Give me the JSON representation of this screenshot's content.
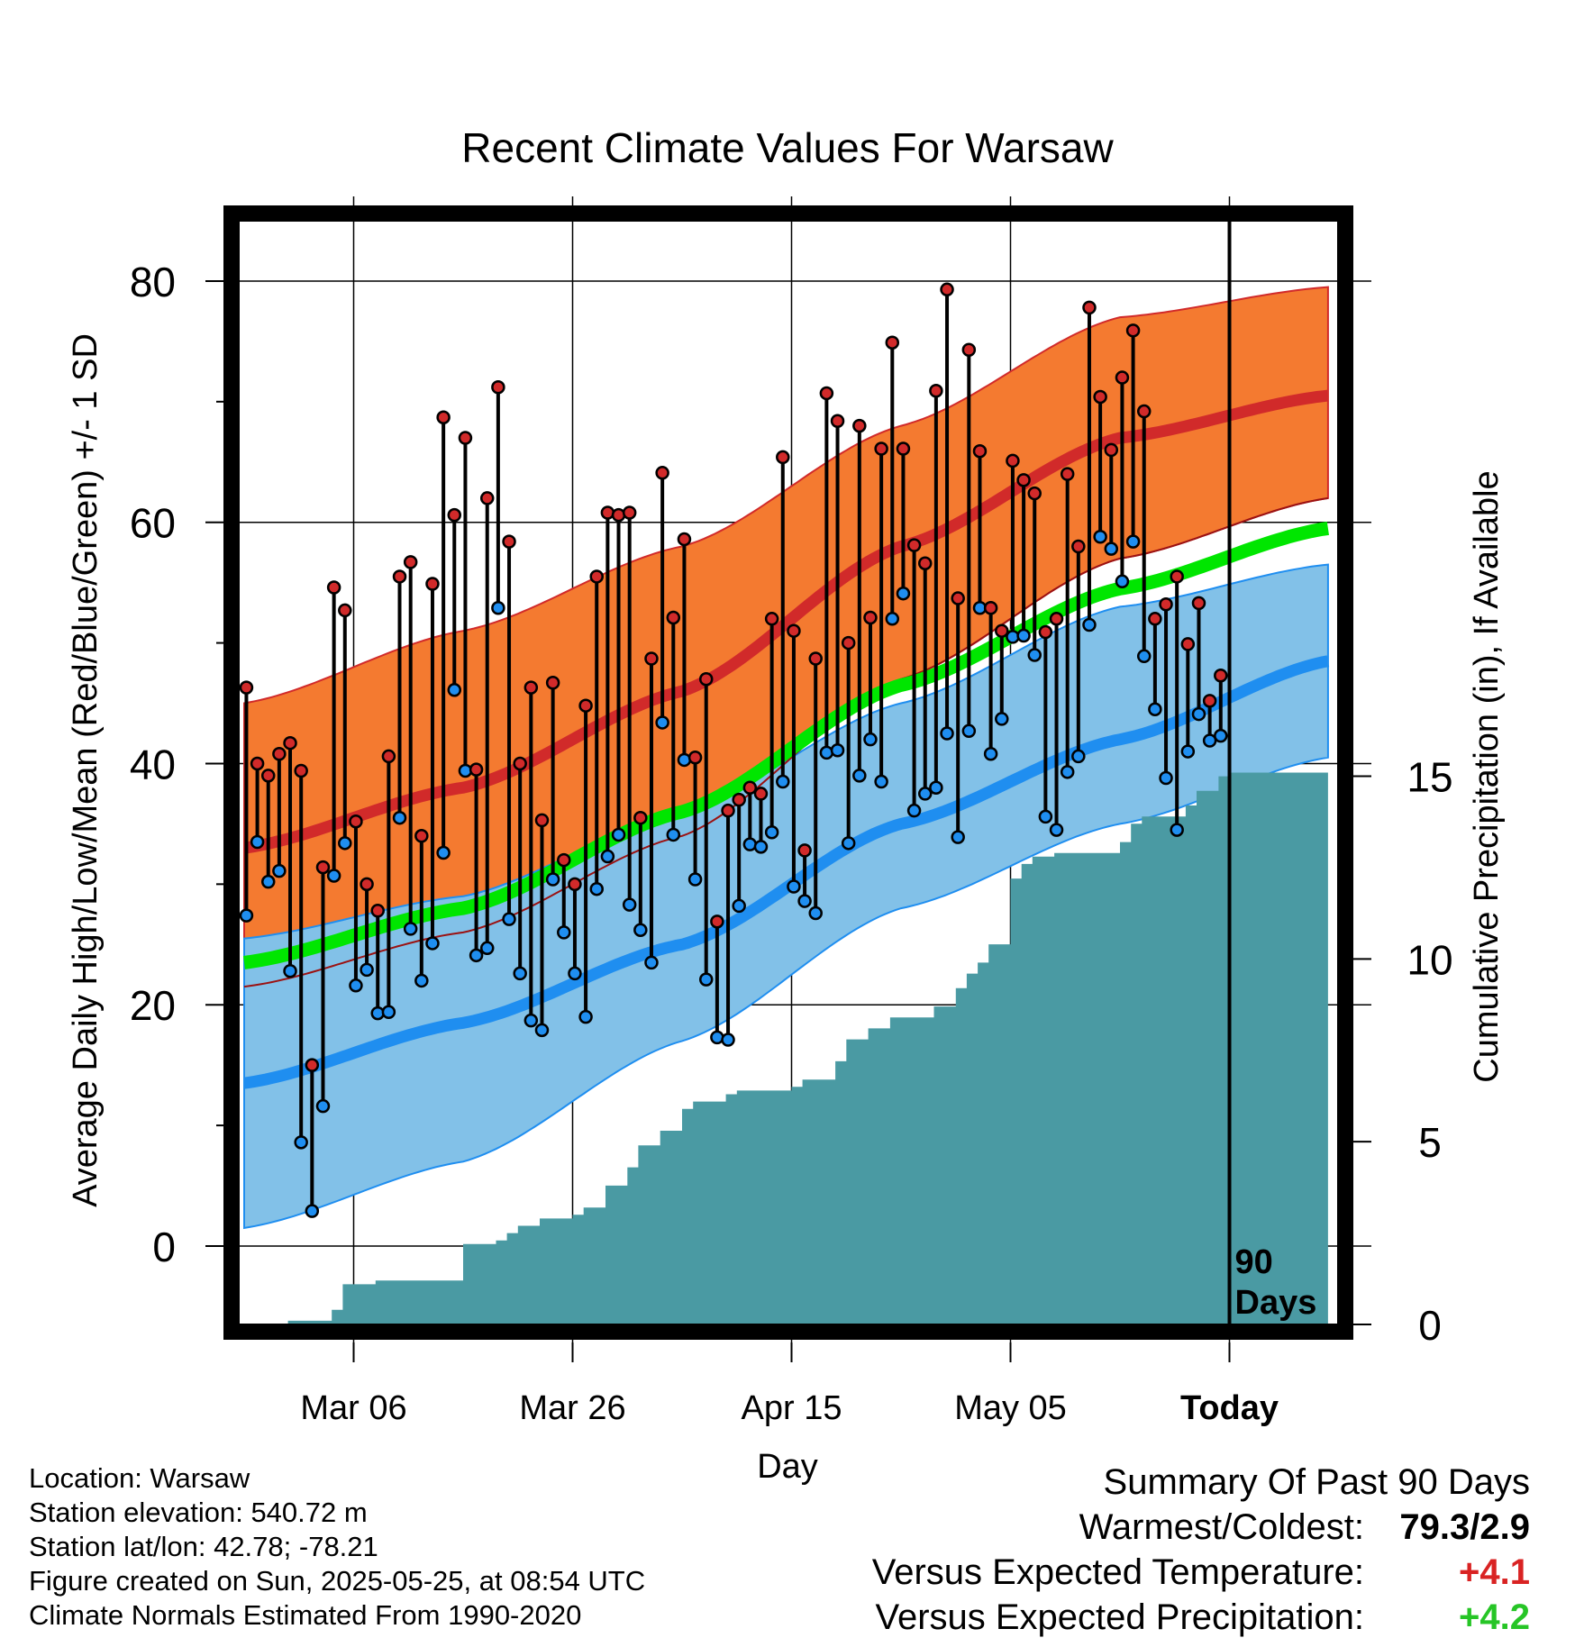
{
  "chart_data": {
    "type": "line",
    "title": "Recent Climate Values For Warsaw",
    "xlabel": "Day",
    "ylabel_left": "Average Daily High/Low/Mean (Red/Blue/Green) +/- 1 SD",
    "ylabel_right": "Cumulative Precipitation (in), If Available",
    "x_ticks": [
      "Mar 06",
      "Mar 26",
      "Apr 15",
      "May 05",
      "Today"
    ],
    "x_tick_days": [
      10,
      30,
      50,
      70,
      90
    ],
    "y_left_ticks": [
      "0",
      "20",
      "40",
      "60",
      "80"
    ],
    "y_left_range": [
      -6.5,
      85
    ],
    "y_right_ticks": [
      "0",
      "5",
      "10",
      "15"
    ],
    "y_right_range": [
      0,
      30.2
    ],
    "grid": true,
    "period_label": "90\nDays",
    "normals": {
      "high_mean": [
        [
          0,
          33
        ],
        [
          20,
          38
        ],
        [
          40,
          46
        ],
        [
          60,
          58
        ],
        [
          80,
          67
        ],
        [
          99,
          70.5
        ]
      ],
      "high_upper": [
        [
          0,
          45
        ],
        [
          20,
          51
        ],
        [
          40,
          58
        ],
        [
          60,
          68
        ],
        [
          80,
          77
        ],
        [
          99,
          79.5
        ]
      ],
      "high_lower": [
        [
          0,
          21.5
        ],
        [
          20,
          26
        ],
        [
          40,
          34
        ],
        [
          60,
          47
        ],
        [
          80,
          57
        ],
        [
          99,
          62
        ]
      ],
      "low_mean": [
        [
          0,
          13.5
        ],
        [
          20,
          18.5
        ],
        [
          40,
          25
        ],
        [
          60,
          35
        ],
        [
          80,
          42
        ],
        [
          99,
          48.5
        ]
      ],
      "low_upper": [
        [
          0,
          25.5
        ],
        [
          20,
          29
        ],
        [
          40,
          36
        ],
        [
          60,
          45
        ],
        [
          80,
          53
        ],
        [
          99,
          56.5
        ]
      ],
      "low_lower": [
        [
          0,
          1.5
        ],
        [
          20,
          7
        ],
        [
          40,
          17
        ],
        [
          60,
          28
        ],
        [
          80,
          35
        ],
        [
          99,
          40.5
        ]
      ],
      "mean": [
        [
          0,
          23.5
        ],
        [
          20,
          28
        ],
        [
          40,
          36
        ],
        [
          60,
          46.5
        ],
        [
          80,
          54.5
        ],
        [
          99,
          59.5
        ]
      ]
    },
    "series": [
      {
        "name": "Daily High",
        "values": [
          46.3,
          40,
          39,
          40.8,
          41.7,
          39.4,
          15,
          31.4,
          54.6,
          52.7,
          35.2,
          30,
          27.8,
          40.6,
          55.5,
          56.7,
          34,
          54.9,
          68.7,
          60.6,
          67,
          39.5,
          62,
          71.2,
          58.4,
          40,
          46.3,
          35.3,
          46.7,
          32,
          30,
          44.8,
          55.5,
          60.8,
          60.6,
          60.8,
          35.5,
          48.7,
          64.1,
          52.1,
          58.6,
          40.5,
          47,
          26.9,
          36.1,
          37,
          38,
          37.5,
          52,
          65.4,
          51,
          32.8,
          48.7,
          70.7,
          68.4,
          50,
          68,
          52.1,
          66.1,
          74.9,
          66.1,
          58.1,
          56.6,
          70.9,
          79.3,
          53.7,
          74.3,
          65.9,
          52.9,
          51,
          65.1,
          63.5,
          62.4,
          50.9,
          52,
          64,
          58,
          77.8,
          70.4,
          66,
          72,
          75.9,
          69.2,
          52,
          53.2,
          55.5,
          49.9,
          53.3,
          45.2,
          47.3
        ]
      },
      {
        "name": "Daily Low",
        "values": [
          27.4,
          33.5,
          30.2,
          31.1,
          22.8,
          8.6,
          2.9,
          11.6,
          30.7,
          33.4,
          21.6,
          22.9,
          19.3,
          19.4,
          35.5,
          26.3,
          22,
          25.1,
          32.6,
          46.1,
          39.4,
          24.1,
          24.7,
          52.9,
          27.1,
          22.6,
          18.7,
          17.9,
          30.4,
          26,
          22.6,
          19,
          29.6,
          32.3,
          34.1,
          28.3,
          26.2,
          23.5,
          43.4,
          34.1,
          40.3,
          30.4,
          22.1,
          17.3,
          17.1,
          28.2,
          33.3,
          33.1,
          34.3,
          38.5,
          29.8,
          28.6,
          27.6,
          40.9,
          41.1,
          33.4,
          39,
          42,
          38.5,
          52,
          54.1,
          36.1,
          37.5,
          38,
          42.5,
          33.9,
          42.7,
          52.9,
          40.8,
          43.7,
          50.5,
          50.6,
          49,
          35.6,
          34.5,
          39.3,
          40.6,
          51.5,
          58.8,
          57.8,
          55.1,
          58.4,
          48.9,
          44.5,
          38.8,
          34.5,
          41,
          44.1,
          41.9,
          42.3
        ]
      }
    ],
    "precip_cumulative": [
      [
        0,
        0
      ],
      [
        4,
        0.1
      ],
      [
        8,
        0.4
      ],
      [
        9,
        1.1
      ],
      [
        11,
        1.1
      ],
      [
        12,
        1.2
      ],
      [
        19,
        1.2
      ],
      [
        20,
        2.2
      ],
      [
        23,
        2.3
      ],
      [
        24,
        2.5
      ],
      [
        25,
        2.7
      ],
      [
        26,
        2.7
      ],
      [
        27,
        2.9
      ],
      [
        30,
        3
      ],
      [
        31,
        3.2
      ],
      [
        33,
        3.8
      ],
      [
        35,
        4.3
      ],
      [
        36,
        4.9
      ],
      [
        38,
        5.3
      ],
      [
        40,
        5.9
      ],
      [
        41,
        6.1
      ],
      [
        43,
        6.1
      ],
      [
        44,
        6.3
      ],
      [
        45,
        6.4
      ],
      [
        49,
        6.4
      ],
      [
        50,
        6.5
      ],
      [
        51,
        6.7
      ],
      [
        53,
        6.7
      ],
      [
        54,
        7.2
      ],
      [
        55,
        7.8
      ],
      [
        57,
        8.1
      ],
      [
        59,
        8.4
      ],
      [
        62,
        8.4
      ],
      [
        63,
        8.7
      ],
      [
        65,
        9.2
      ],
      [
        66,
        9.6
      ],
      [
        67,
        9.9
      ],
      [
        68,
        10.4
      ],
      [
        70,
        12.2
      ],
      [
        71,
        12.6
      ],
      [
        72,
        12.8
      ],
      [
        74,
        12.9
      ],
      [
        79,
        12.9
      ],
      [
        80,
        13.2
      ],
      [
        81,
        13.7
      ],
      [
        82,
        13.9
      ],
      [
        84,
        13.9
      ],
      [
        86,
        14.2
      ],
      [
        87,
        14.6
      ],
      [
        89,
        15
      ],
      [
        90,
        15.1
      ],
      [
        99,
        15.1
      ]
    ]
  },
  "footer": {
    "location": "Location: Warsaw",
    "elevation": "Station elevation: 540.72 m",
    "latlon": "Station lat/lon: 42.78; -78.21",
    "created": "Figure created on Sun, 2025-05-25, at 08:54 UTC",
    "normals": "Climate Normals Estimated From 1990-2020"
  },
  "summary": {
    "title": "Summary Of Past 90 Days",
    "warmest_coldest_label": "Warmest/Coldest:",
    "warmest_coldest_value": "79.3/2.9",
    "temp_label": "Versus Expected Temperature:",
    "temp_value": "+4.1",
    "precip_label": "Versus Expected Precipitation:",
    "precip_value": "+4.2"
  },
  "colors": {
    "high_band": "#f47a30",
    "high_mean": "#d12a2a",
    "low_band": "#82c1e8",
    "low_mean": "#1f8ef0",
    "mean": "#00e600",
    "precip": "#4a9aa3",
    "overlap": "#9b1212",
    "high_marker": "#d12a2a",
    "low_marker": "#1f8ef0"
  }
}
